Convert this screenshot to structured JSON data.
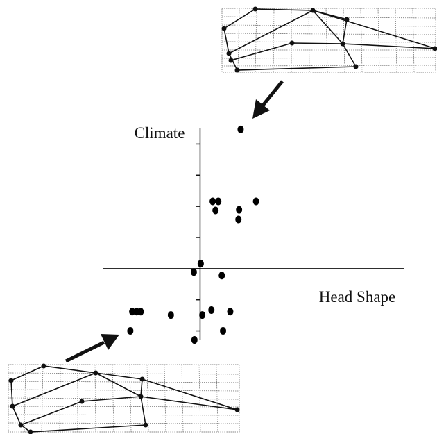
{
  "chart_data": {
    "type": "scatter",
    "y_label": "Climate",
    "x_label": "Head Shape",
    "x": [
      1.29,
      0.4,
      0.58,
      0.49,
      1.78,
      1.24,
      1.22,
      0.02,
      -0.2,
      0.69,
      -2.16,
      -2.02,
      -1.89,
      -0.93,
      0.07,
      0.36,
      0.96,
      -2.22,
      0.73,
      -0.18
    ],
    "y": [
      4.47,
      2.16,
      2.16,
      1.87,
      2.16,
      1.89,
      1.58,
      0.16,
      -0.11,
      -0.22,
      -1.38,
      -1.38,
      -1.38,
      -1.49,
      -1.49,
      -1.33,
      -1.38,
      -2.0,
      -2.0,
      -2.29
    ],
    "xlim": [
      -3.1,
      6.5
    ],
    "ylim": [
      -2.3,
      4.5
    ],
    "yticks": [
      -2,
      -1,
      0,
      1,
      2,
      3,
      4
    ],
    "color": "#000000"
  }
}
